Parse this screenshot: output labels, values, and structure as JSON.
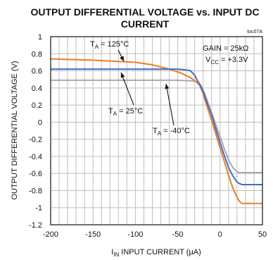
{
  "chart_data": {
    "type": "line",
    "title": "OUTPUT DIFFERENTIAL VOLTAGE vs. INPUT DC CURRENT",
    "title_lines": [
      "OUTPUT DIFFERENTIAL VOLTAGE vs. INPUT DC",
      "CURRENT"
    ],
    "code": "toc07A",
    "xlabel": {
      "main": "I",
      "sub": "IN",
      "rest": " INPUT CURRENT (µA)"
    },
    "ylabel": "OUTPUT DIFFERENTIAL VOLTAGE (V)",
    "xlim": [
      -200,
      50
    ],
    "ylim": [
      -1.2,
      1
    ],
    "xticks": [
      -200,
      -150,
      -100,
      -50,
      0,
      50
    ],
    "xtick_labels": [
      "-200",
      "-150",
      "-100",
      "-50",
      "0",
      "50"
    ],
    "yticks": [
      1,
      0.8,
      0.6,
      0.4,
      0.2,
      0,
      -0.2,
      -0.4,
      -0.6,
      -0.8,
      -1,
      -1.2
    ],
    "ytick_labels": [
      "1",
      "0.8",
      "0.6",
      "0.4",
      "0.2",
      "0",
      "-0.2",
      "-0.4",
      "-0.6",
      "-0.8",
      "-1",
      "-1.2"
    ],
    "grid": true,
    "annotations": {
      "gain": {
        "prefix": "GAIN = 25k",
        "omega": "Ω"
      },
      "vcc": {
        "main": "V",
        "sub": "CC",
        "rest": " = +3.3V"
      },
      "ta_125": {
        "main": "T",
        "sub": "A",
        "rest": " = 125°C"
      },
      "ta_25": {
        "main": "T",
        "sub": "A",
        "rest": " = 25°C"
      },
      "ta_m40": {
        "main": "T",
        "sub": "A",
        "rest": " = -40°C"
      }
    },
    "series": [
      {
        "name": "T_A = 125°C",
        "color": "#ef7d22",
        "x": [
          -200,
          -150,
          -100,
          -80,
          -60,
          -45,
          -35,
          -28,
          -24,
          -20,
          -15,
          -10,
          -5,
          0,
          5,
          10,
          15,
          20,
          23,
          26,
          30,
          40,
          50
        ],
        "y": [
          0.74,
          0.725,
          0.7,
          0.67,
          0.62,
          0.57,
          0.52,
          0.47,
          0.43,
          0.33,
          0.17,
          0.02,
          -0.14,
          -0.3,
          -0.46,
          -0.62,
          -0.77,
          -0.88,
          -0.93,
          -0.95,
          -0.95,
          -0.95,
          -0.95
        ]
      },
      {
        "name": "T_A = 25°C",
        "color": "#3d6fc2",
        "x": [
          -200,
          -100,
          -50,
          -40,
          -35,
          -30,
          -27,
          -24,
          -20,
          -15,
          -10,
          -5,
          0,
          5,
          10,
          15,
          20,
          23,
          26,
          30,
          40,
          50
        ],
        "y": [
          0.62,
          0.62,
          0.62,
          0.61,
          0.6,
          0.55,
          0.49,
          0.44,
          0.36,
          0.22,
          0.08,
          -0.08,
          -0.24,
          -0.39,
          -0.53,
          -0.63,
          -0.7,
          -0.72,
          -0.73,
          -0.73,
          -0.73,
          -0.73
        ]
      },
      {
        "name": "T_A = -40°C",
        "color": "#a9a9a9",
        "x": [
          -200,
          -100,
          -50,
          -30,
          -25,
          -22,
          -18,
          -14,
          -10,
          -5,
          0,
          5,
          10,
          15,
          20,
          23,
          26,
          30,
          40,
          50
        ],
        "y": [
          0.49,
          0.49,
          0.49,
          0.48,
          0.46,
          0.42,
          0.33,
          0.22,
          0.11,
          -0.03,
          -0.17,
          -0.31,
          -0.44,
          -0.53,
          -0.58,
          -0.59,
          -0.59,
          -0.59,
          -0.59,
          -0.59
        ]
      }
    ]
  }
}
